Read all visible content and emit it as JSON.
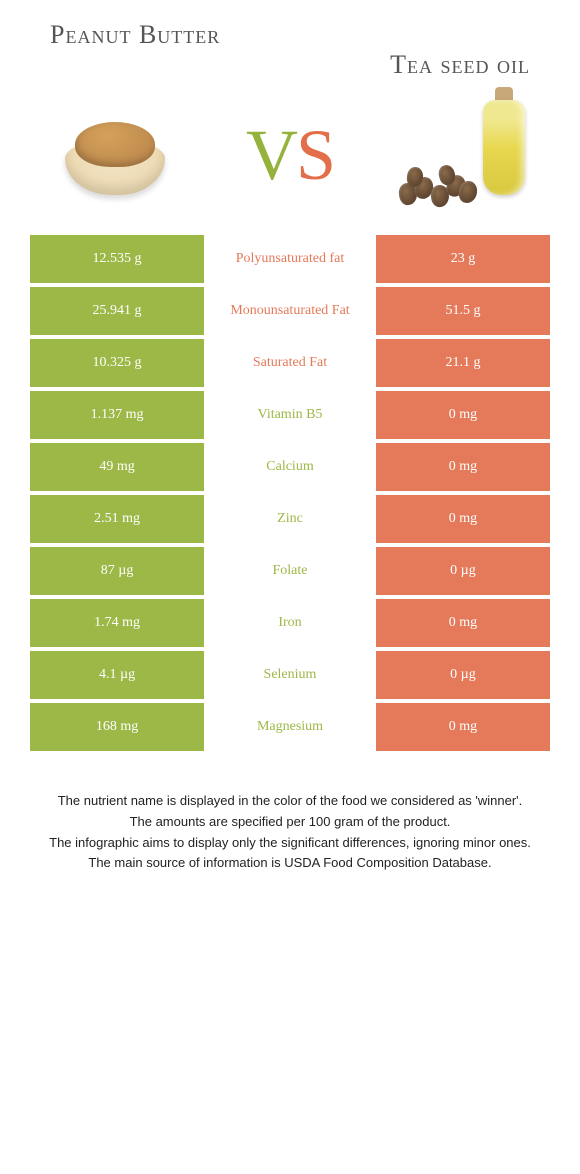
{
  "header": {
    "left_title": "Peanut Butter",
    "right_title": "Tea seed oil",
    "vs_left": "V",
    "vs_right": "S"
  },
  "colors": {
    "left_bg": "#9cb846",
    "right_bg": "#e47a5a",
    "left_text": "#9cb846",
    "right_text": "#e47a5a"
  },
  "rows": [
    {
      "left": "12.535 g",
      "label": "Polyunsaturated fat",
      "right": "23 g",
      "winner": "right"
    },
    {
      "left": "25.941 g",
      "label": "Monounsaturated Fat",
      "right": "51.5 g",
      "winner": "right"
    },
    {
      "left": "10.325 g",
      "label": "Saturated Fat",
      "right": "21.1 g",
      "winner": "right"
    },
    {
      "left": "1.137 mg",
      "label": "Vitamin B5",
      "right": "0 mg",
      "winner": "left"
    },
    {
      "left": "49 mg",
      "label": "Calcium",
      "right": "0 mg",
      "winner": "left"
    },
    {
      "left": "2.51 mg",
      "label": "Zinc",
      "right": "0 mg",
      "winner": "left"
    },
    {
      "left": "87 µg",
      "label": "Folate",
      "right": "0 µg",
      "winner": "left"
    },
    {
      "left": "1.74 mg",
      "label": "Iron",
      "right": "0 mg",
      "winner": "left"
    },
    {
      "left": "4.1 µg",
      "label": "Selenium",
      "right": "0 µg",
      "winner": "left"
    },
    {
      "left": "168 mg",
      "label": "Magnesium",
      "right": "0 mg",
      "winner": "left"
    }
  ],
  "footnotes": [
    "The nutrient name is displayed in the color of the food we considered as 'winner'.",
    "The amounts are specified per 100 gram of the product.",
    "The infographic aims to display only the significant differences, ignoring minor ones.",
    "The main source of information is USDA Food Composition Database."
  ]
}
